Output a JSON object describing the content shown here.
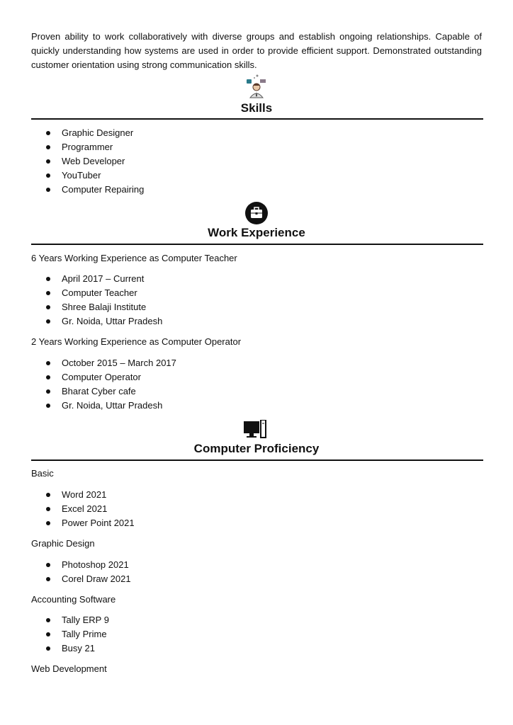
{
  "summary": "Proven ability to work collaboratively with diverse groups and establish ongoing relationships. Capable of quickly understanding how systems are used in order to provide efficient support. Demonstrated outstanding customer orientation using strong communication skills.",
  "skills": {
    "heading": "Skills",
    "icon": "person-tech-icon",
    "items": [
      "Graphic Designer",
      "Programmer",
      "Web Developer",
      "YouTuber",
      "Computer Repairing"
    ]
  },
  "work": {
    "heading": "Work Experience",
    "icon": "briefcase-icon",
    "jobs": [
      {
        "title": "6 Years Working Experience as Computer Teacher",
        "items": [
          "April 2017 – Current",
          "Computer Teacher",
          "Shree Balaji Institute",
          "Gr. Noida, Uttar Pradesh"
        ]
      },
      {
        "title": "2 Years Working Experience as Computer Operator",
        "items": [
          "October 2015 – March 2017",
          "Computer Operator",
          "Bharat Cyber cafe",
          "Gr. Noida, Uttar Pradesh"
        ]
      }
    ]
  },
  "proficiency": {
    "heading": "Computer Proficiency",
    "icon": "desktop-computer-icon",
    "groups": [
      {
        "title": "Basic",
        "items": [
          "Word 2021",
          "Excel 2021",
          "Power Point 2021"
        ]
      },
      {
        "title": "Graphic Design",
        "items": [
          "Photoshop 2021",
          "Corel Draw 2021"
        ]
      },
      {
        "title": "Accounting Software",
        "items": [
          "Tally ERP 9",
          "Tally Prime",
          "Busy 21"
        ]
      },
      {
        "title": "Web Development",
        "items": []
      }
    ]
  }
}
